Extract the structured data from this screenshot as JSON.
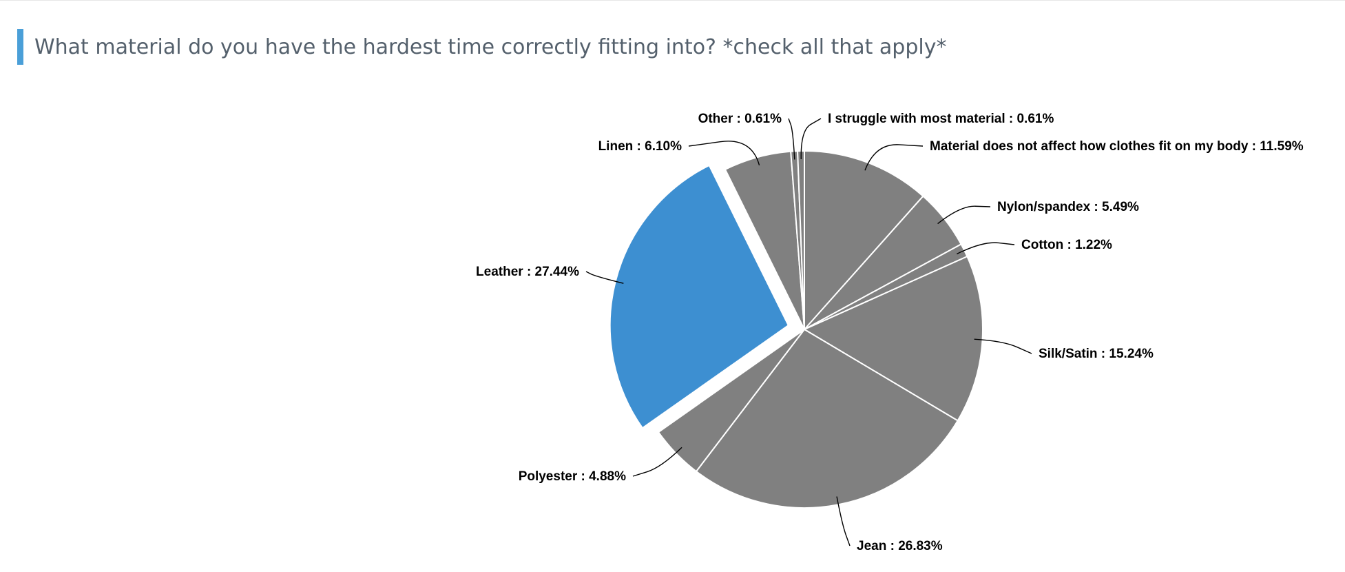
{
  "question": {
    "title": "What material do you have the hardest time correctly fitting into? *check all that apply*",
    "accent_color": "#4a9fd8"
  },
  "chart_data": {
    "type": "pie",
    "title": "What material do you have the hardest time correctly fitting into? *check all that apply*",
    "slice_color": "#808080",
    "highlight_color": "#3d8fd1",
    "slices": [
      {
        "name": "Material does not affect how clothes fit on my body",
        "value": 11.59,
        "label": "Material does not affect how clothes fit on my body : 11.59%",
        "highlighted": false
      },
      {
        "name": "Nylon/spandex",
        "value": 5.49,
        "label": "Nylon/spandex : 5.49%",
        "highlighted": false
      },
      {
        "name": "Cotton",
        "value": 1.22,
        "label": "Cotton : 1.22%",
        "highlighted": false
      },
      {
        "name": "Silk/Satin",
        "value": 15.24,
        "label": "Silk/Satin : 15.24%",
        "highlighted": false
      },
      {
        "name": "Jean",
        "value": 26.83,
        "label": "Jean : 26.83%",
        "highlighted": false
      },
      {
        "name": "Polyester",
        "value": 4.88,
        "label": "Polyester : 4.88%",
        "highlighted": false
      },
      {
        "name": "Leather",
        "value": 27.44,
        "label": "Leather : 27.44%",
        "highlighted": true
      },
      {
        "name": "Linen",
        "value": 6.1,
        "label": "Linen : 6.10%",
        "highlighted": false
      },
      {
        "name": "Other",
        "value": 0.61,
        "label": "Other : 0.61%",
        "highlighted": false
      },
      {
        "name": "I struggle with most material",
        "value": 0.61,
        "label": "I struggle with most material : 0.61%",
        "highlighted": false
      }
    ]
  }
}
